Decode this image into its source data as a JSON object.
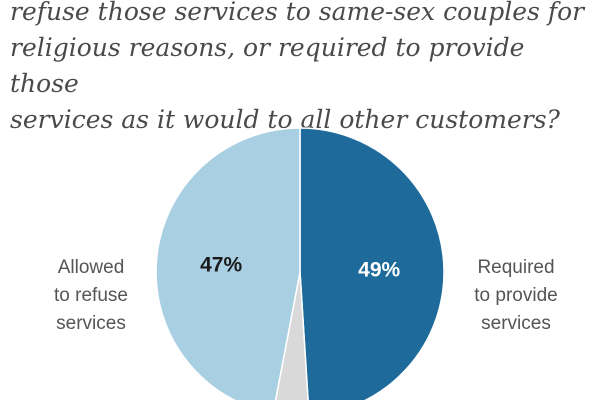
{
  "question_lines": [
    "refuse those services to same-sex couples for",
    "religious reasons, or required to provide those",
    "services as it would to all other customers?"
  ],
  "chart_data": {
    "type": "pie",
    "title": "",
    "slices": [
      {
        "label": "Required to provide services",
        "label_lines": [
          "Required",
          "to provide",
          "services"
        ],
        "value": 49,
        "value_label": "49%",
        "color": "#1d6a9b",
        "text_color": "#ffffff"
      },
      {
        "label": "",
        "value": 4,
        "value_label": "",
        "color": "#d9d9d9",
        "text_color": "#333333"
      },
      {
        "label": "Allowed to refuse services",
        "label_lines": [
          "Allowed",
          "to refuse",
          "services"
        ],
        "value": 47,
        "value_label": "47%",
        "color": "#a9cfe3",
        "text_color": "#1a1a1a"
      }
    ],
    "start_angle_deg": 0,
    "direction": "clockwise"
  }
}
